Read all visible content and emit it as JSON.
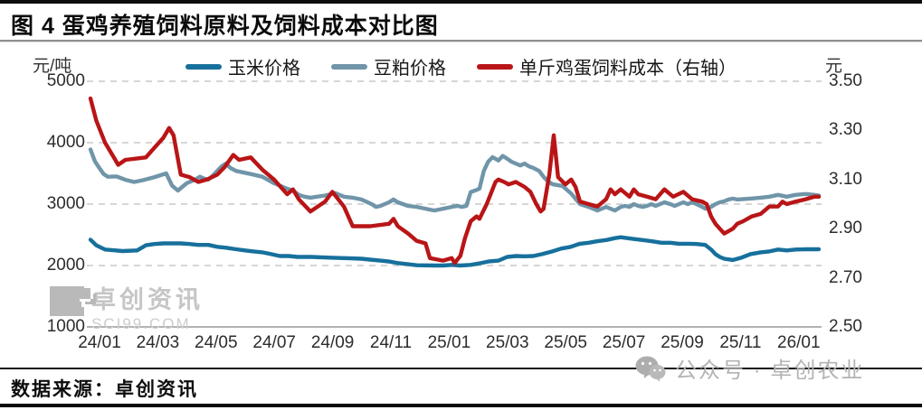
{
  "title": "图 4 蛋鸡养殖饲料原料及饲料成本对比图",
  "footer": {
    "source": "数据来源：卓创资讯"
  },
  "watermarks": {
    "inplot_name": "卓创资讯",
    "inplot_site": "SCI99.COM",
    "bottom_right": "公众号 · 卓创农业"
  },
  "colors": {
    "corn": "#17709c",
    "soybean": "#7095a9",
    "feed_cost": "#b91517",
    "grid": "#c8c8c8",
    "baseline": "#9a9a9a"
  },
  "chart_data": {
    "type": "line",
    "title": "蛋鸡养殖饲料原料及饲料成本对比图",
    "legend_position": "top",
    "grid": "horizontal-dashed",
    "left_axis": {
      "unit": "元/吨",
      "max": 5000,
      "min": 1000,
      "ticks": [
        5000,
        4000,
        3000,
        2000,
        1000
      ]
    },
    "right_axis": {
      "unit": "元",
      "max": 3.5,
      "min": 2.5,
      "ticks": [
        "3.50",
        "3.30",
        "3.10",
        "2.90",
        "2.70",
        "2.50"
      ]
    },
    "x_axis": {
      "labels": [
        "24/01",
        "24/03",
        "24/05",
        "24/07",
        "24/09",
        "24/11",
        "25/01",
        "25/03",
        "25/05",
        "25/07",
        "25/09",
        "25/11",
        "26/01"
      ],
      "months_span": 25
    },
    "series": [
      {
        "name": "玉米价格",
        "axis": "left",
        "color": "#17709c",
        "points": [
          [
            0,
            2420
          ],
          [
            0.2,
            2330
          ],
          [
            0.5,
            2260
          ],
          [
            1.1,
            2235
          ],
          [
            1.6,
            2245
          ],
          [
            1.9,
            2330
          ],
          [
            2.2,
            2350
          ],
          [
            2.5,
            2360
          ],
          [
            3.1,
            2360
          ],
          [
            3.4,
            2350
          ],
          [
            3.7,
            2335
          ],
          [
            4.05,
            2335
          ],
          [
            4.35,
            2305
          ],
          [
            4.65,
            2290
          ],
          [
            5.0,
            2265
          ],
          [
            5.3,
            2245
          ],
          [
            5.6,
            2230
          ],
          [
            5.9,
            2215
          ],
          [
            6.2,
            2185
          ],
          [
            6.5,
            2155
          ],
          [
            6.8,
            2155
          ],
          [
            7.1,
            2140
          ],
          [
            7.6,
            2140
          ],
          [
            8.1,
            2130
          ],
          [
            8.7,
            2120
          ],
          [
            9.3,
            2110
          ],
          [
            9.6,
            2095
          ],
          [
            9.95,
            2080
          ],
          [
            10.25,
            2065
          ],
          [
            10.55,
            2040
          ],
          [
            10.9,
            2020
          ],
          [
            11.2,
            2005
          ],
          [
            11.8,
            2000
          ],
          [
            12.1,
            2000
          ],
          [
            12.4,
            2010
          ],
          [
            12.7,
            2000
          ],
          [
            13.05,
            2010
          ],
          [
            13.35,
            2035
          ],
          [
            13.65,
            2065
          ],
          [
            14.0,
            2080
          ],
          [
            14.3,
            2140
          ],
          [
            14.6,
            2155
          ],
          [
            14.9,
            2150
          ],
          [
            15.2,
            2155
          ],
          [
            15.5,
            2185
          ],
          [
            15.85,
            2230
          ],
          [
            16.15,
            2275
          ],
          [
            16.45,
            2300
          ],
          [
            16.8,
            2355
          ],
          [
            17.1,
            2370
          ],
          [
            17.4,
            2395
          ],
          [
            17.7,
            2415
          ],
          [
            18.0,
            2445
          ],
          [
            18.2,
            2460
          ],
          [
            18.6,
            2435
          ],
          [
            18.95,
            2415
          ],
          [
            19.25,
            2395
          ],
          [
            19.6,
            2370
          ],
          [
            19.9,
            2370
          ],
          [
            20.2,
            2355
          ],
          [
            20.5,
            2355
          ],
          [
            20.8,
            2350
          ],
          [
            21.1,
            2335
          ],
          [
            21.3,
            2260
          ],
          [
            21.45,
            2185
          ],
          [
            21.6,
            2140
          ],
          [
            21.75,
            2110
          ],
          [
            22.05,
            2090
          ],
          [
            22.35,
            2130
          ],
          [
            22.65,
            2185
          ],
          [
            23.0,
            2215
          ],
          [
            23.3,
            2230
          ],
          [
            23.6,
            2260
          ],
          [
            23.9,
            2245
          ],
          [
            24.2,
            2260
          ],
          [
            24.55,
            2265
          ],
          [
            25,
            2265
          ]
        ]
      },
      {
        "name": "豆粕价格",
        "axis": "left",
        "color": "#7095a9",
        "points": [
          [
            0,
            3890
          ],
          [
            0.15,
            3700
          ],
          [
            0.3,
            3590
          ],
          [
            0.45,
            3490
          ],
          [
            0.6,
            3445
          ],
          [
            0.9,
            3450
          ],
          [
            1.2,
            3395
          ],
          [
            1.5,
            3360
          ],
          [
            1.8,
            3390
          ],
          [
            2.2,
            3440
          ],
          [
            2.6,
            3500
          ],
          [
            2.8,
            3300
          ],
          [
            3.0,
            3220
          ],
          [
            3.15,
            3280
          ],
          [
            3.3,
            3340
          ],
          [
            3.6,
            3400
          ],
          [
            3.75,
            3445
          ],
          [
            3.9,
            3415
          ],
          [
            4.05,
            3400
          ],
          [
            4.2,
            3465
          ],
          [
            4.35,
            3540
          ],
          [
            4.5,
            3615
          ],
          [
            4.65,
            3660
          ],
          [
            4.8,
            3590
          ],
          [
            5.0,
            3540
          ],
          [
            5.5,
            3490
          ],
          [
            5.9,
            3445
          ],
          [
            6.3,
            3340
          ],
          [
            6.75,
            3250
          ],
          [
            6.95,
            3220
          ],
          [
            7.15,
            3150
          ],
          [
            7.35,
            3120
          ],
          [
            7.55,
            3105
          ],
          [
            8.05,
            3140
          ],
          [
            8.4,
            3180
          ],
          [
            8.7,
            3120
          ],
          [
            9.0,
            3105
          ],
          [
            9.3,
            3075
          ],
          [
            9.65,
            3000
          ],
          [
            9.8,
            2955
          ],
          [
            9.95,
            2970
          ],
          [
            10.25,
            3030
          ],
          [
            10.4,
            3075
          ],
          [
            10.55,
            3030
          ],
          [
            10.9,
            2970
          ],
          [
            11.2,
            2955
          ],
          [
            11.5,
            2925
          ],
          [
            11.8,
            2895
          ],
          [
            12.1,
            2925
          ],
          [
            12.4,
            2955
          ],
          [
            12.6,
            2970
          ],
          [
            12.75,
            2955
          ],
          [
            12.9,
            2970
          ],
          [
            13.05,
            3195
          ],
          [
            13.2,
            3220
          ],
          [
            13.35,
            3250
          ],
          [
            13.5,
            3540
          ],
          [
            13.65,
            3690
          ],
          [
            13.8,
            3765
          ],
          [
            14.0,
            3710
          ],
          [
            14.15,
            3785
          ],
          [
            14.3,
            3740
          ],
          [
            14.45,
            3690
          ],
          [
            14.6,
            3660
          ],
          [
            14.75,
            3630
          ],
          [
            14.9,
            3660
          ],
          [
            15.05,
            3615
          ],
          [
            15.2,
            3590
          ],
          [
            15.4,
            3540
          ],
          [
            15.55,
            3445
          ],
          [
            15.7,
            3370
          ],
          [
            15.85,
            3325
          ],
          [
            16.2,
            3295
          ],
          [
            16.5,
            3170
          ],
          [
            16.8,
            3000
          ],
          [
            17.1,
            2955
          ],
          [
            17.4,
            2895
          ],
          [
            17.7,
            2955
          ],
          [
            17.85,
            2925
          ],
          [
            18.0,
            2895
          ],
          [
            18.2,
            2955
          ],
          [
            18.35,
            2970
          ],
          [
            18.5,
            2955
          ],
          [
            18.65,
            3000
          ],
          [
            18.8,
            2970
          ],
          [
            18.95,
            2955
          ],
          [
            19.1,
            2970
          ],
          [
            19.25,
            3000
          ],
          [
            19.4,
            2970
          ],
          [
            19.55,
            3000
          ],
          [
            19.7,
            3030
          ],
          [
            19.9,
            3000
          ],
          [
            20.05,
            2970
          ],
          [
            20.2,
            3000
          ],
          [
            20.35,
            3030
          ],
          [
            20.5,
            3000
          ],
          [
            20.65,
            3030
          ],
          [
            20.8,
            3000
          ],
          [
            21.0,
            2955
          ],
          [
            21.1,
            2925
          ],
          [
            21.3,
            2955
          ],
          [
            21.45,
            3000
          ],
          [
            21.6,
            3030
          ],
          [
            21.75,
            3045
          ],
          [
            21.9,
            3075
          ],
          [
            22.05,
            3090
          ],
          [
            22.2,
            3075
          ],
          [
            22.35,
            3080
          ],
          [
            22.65,
            3090
          ],
          [
            23.0,
            3105
          ],
          [
            23.3,
            3120
          ],
          [
            23.6,
            3150
          ],
          [
            23.9,
            3120
          ],
          [
            24.2,
            3150
          ],
          [
            24.55,
            3165
          ],
          [
            24.85,
            3150
          ],
          [
            25,
            3140
          ]
        ]
      },
      {
        "name": "单斤鸡蛋饲料成本（右轴）",
        "axis": "right",
        "color": "#b91517",
        "points": [
          [
            0,
            3.43
          ],
          [
            0.2,
            3.34
          ],
          [
            0.5,
            3.25
          ],
          [
            0.8,
            3.19
          ],
          [
            0.95,
            3.16
          ],
          [
            1.2,
            3.18
          ],
          [
            1.9,
            3.19
          ],
          [
            2.2,
            3.23
          ],
          [
            2.5,
            3.27
          ],
          [
            2.7,
            3.31
          ],
          [
            2.85,
            3.28
          ],
          [
            3.1,
            3.12
          ],
          [
            3.4,
            3.11
          ],
          [
            3.7,
            3.09
          ],
          [
            4.0,
            3.1
          ],
          [
            4.35,
            3.12
          ],
          [
            4.6,
            3.15
          ],
          [
            4.9,
            3.2
          ],
          [
            5.1,
            3.18
          ],
          [
            5.5,
            3.19
          ],
          [
            5.9,
            3.14
          ],
          [
            6.3,
            3.1
          ],
          [
            6.75,
            3.04
          ],
          [
            6.95,
            3.06
          ],
          [
            7.15,
            3.02
          ],
          [
            7.55,
            2.97
          ],
          [
            8.05,
            3.01
          ],
          [
            8.3,
            3.05
          ],
          [
            8.7,
            2.99
          ],
          [
            9.0,
            2.91
          ],
          [
            9.6,
            2.91
          ],
          [
            10.25,
            2.92
          ],
          [
            10.4,
            2.94
          ],
          [
            10.55,
            2.91
          ],
          [
            10.9,
            2.88
          ],
          [
            11.2,
            2.85
          ],
          [
            11.5,
            2.84
          ],
          [
            11.65,
            2.78
          ],
          [
            12.1,
            2.77
          ],
          [
            12.4,
            2.78
          ],
          [
            12.5,
            2.76
          ],
          [
            12.7,
            2.79
          ],
          [
            12.85,
            2.86
          ],
          [
            13.05,
            2.93
          ],
          [
            13.25,
            2.95
          ],
          [
            13.35,
            2.94
          ],
          [
            13.6,
            3.0
          ],
          [
            13.9,
            3.09
          ],
          [
            14.0,
            3.1
          ],
          [
            14.2,
            3.09
          ],
          [
            14.35,
            3.08
          ],
          [
            14.6,
            3.09
          ],
          [
            14.9,
            3.07
          ],
          [
            15.1,
            3.05
          ],
          [
            15.3,
            3.0
          ],
          [
            15.45,
            2.97
          ],
          [
            15.55,
            2.98
          ],
          [
            15.75,
            3.12
          ],
          [
            15.9,
            3.28
          ],
          [
            16.05,
            3.11
          ],
          [
            16.3,
            3.08
          ],
          [
            16.5,
            3.1
          ],
          [
            16.65,
            3.07
          ],
          [
            16.8,
            3.01
          ],
          [
            17.1,
            3.0
          ],
          [
            17.4,
            2.99
          ],
          [
            17.7,
            3.02
          ],
          [
            17.85,
            3.06
          ],
          [
            18.0,
            3.04
          ],
          [
            18.2,
            3.06
          ],
          [
            18.5,
            3.03
          ],
          [
            18.65,
            3.06
          ],
          [
            18.8,
            3.04
          ],
          [
            19.1,
            3.03
          ],
          [
            19.4,
            3.02
          ],
          [
            19.7,
            3.06
          ],
          [
            20.0,
            3.03
          ],
          [
            20.35,
            3.05
          ],
          [
            20.65,
            3.02
          ],
          [
            21.0,
            3.01
          ],
          [
            21.15,
            3.0
          ],
          [
            21.3,
            2.95
          ],
          [
            21.45,
            2.92
          ],
          [
            21.6,
            2.9
          ],
          [
            21.75,
            2.88
          ],
          [
            21.9,
            2.89
          ],
          [
            22.05,
            2.9
          ],
          [
            22.2,
            2.92
          ],
          [
            22.4,
            2.93
          ],
          [
            22.7,
            2.95
          ],
          [
            23.0,
            2.96
          ],
          [
            23.3,
            2.99
          ],
          [
            23.6,
            2.99
          ],
          [
            23.75,
            3.01
          ],
          [
            23.9,
            3.0
          ],
          [
            24.2,
            3.01
          ],
          [
            24.55,
            3.02
          ],
          [
            24.85,
            3.03
          ],
          [
            25,
            3.03
          ]
        ]
      }
    ]
  }
}
